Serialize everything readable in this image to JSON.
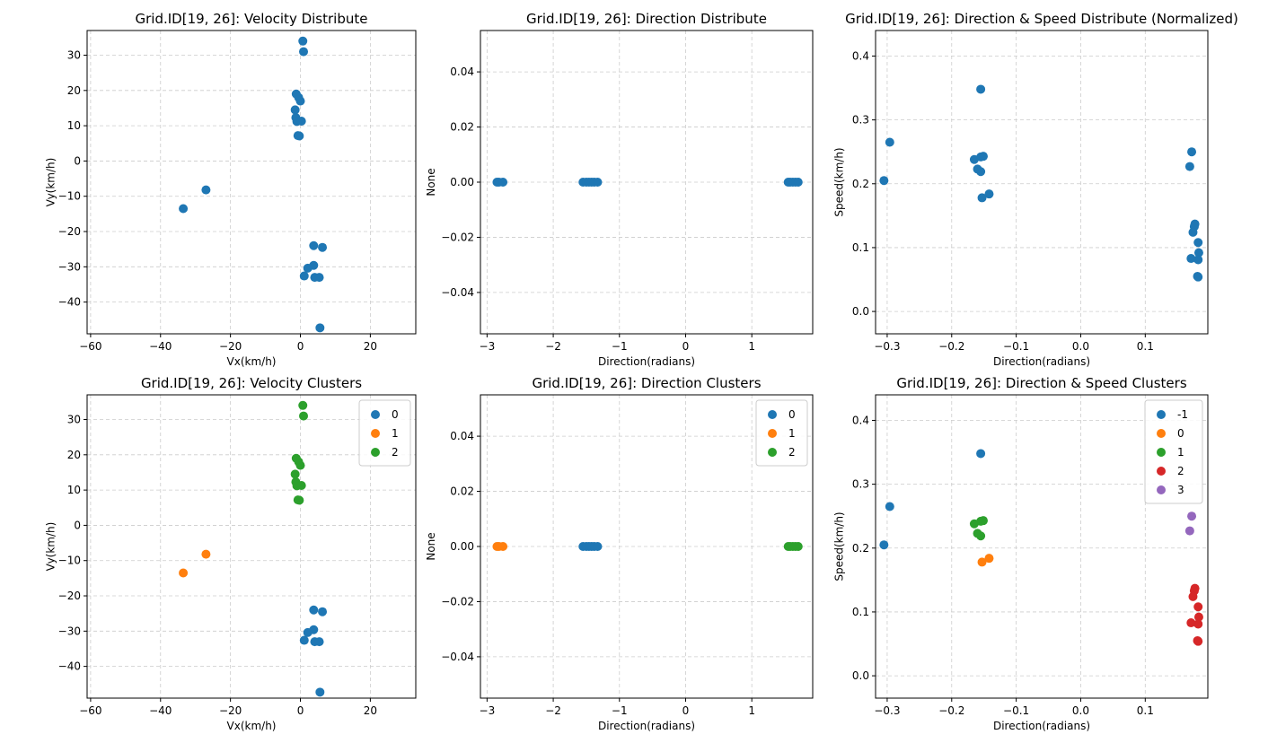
{
  "chart_data": [
    {
      "type": "scatter",
      "title": "Grid.ID[19, 26]: Velocity Distribute",
      "xlabel": "Vx(km/h)",
      "ylabel": "Vy(km/h)",
      "xlim": [
        -61,
        33
      ],
      "ylim": [
        -49,
        37
      ],
      "xticks": [
        -60,
        -40,
        -20,
        0,
        20
      ],
      "yticks": [
        -40,
        -30,
        -20,
        -10,
        0,
        10,
        20,
        30
      ],
      "xtick_labels": [
        "−60",
        "−40",
        "−20",
        "0",
        "20"
      ],
      "ytick_labels": [
        "−40",
        "−30",
        "−20",
        "−10",
        "0",
        "10",
        "20",
        "30"
      ],
      "grid": true,
      "series": [
        {
          "color": "#1f77b4",
          "points": [
            [
              0.7,
              34
            ],
            [
              0.9,
              31
            ],
            [
              -1.2,
              19
            ],
            [
              -0.5,
              18
            ],
            [
              0,
              17
            ],
            [
              -1.5,
              14.5
            ],
            [
              -1.3,
              12.3
            ],
            [
              -1,
              11.2
            ],
            [
              0.3,
              11.3
            ],
            [
              -0.7,
              7.2
            ],
            [
              -0.3,
              7.1
            ],
            [
              -27,
              -8.2
            ],
            [
              -33.5,
              -13.5
            ],
            [
              3.8,
              -24
            ],
            [
              6.3,
              -24.5
            ],
            [
              3.8,
              -29.6
            ],
            [
              2.1,
              -30.4
            ],
            [
              1.1,
              -32.6
            ],
            [
              4.1,
              -33
            ],
            [
              5.4,
              -33
            ],
            [
              5.6,
              -47.3
            ]
          ]
        }
      ]
    },
    {
      "type": "scatter",
      "title": "Grid.ID[19, 26]: Direction Distribute",
      "xlabel": "Direction(radians)",
      "ylabel": "None",
      "xlim": [
        -3.1,
        1.92
      ],
      "ylim": [
        -0.055,
        0.055
      ],
      "xticks": [
        -3,
        -2,
        -1,
        0,
        1
      ],
      "yticks": [
        -0.04,
        -0.02,
        0.0,
        0.02,
        0.04
      ],
      "xtick_labels": [
        "−3",
        "−2",
        "−1",
        "0",
        "1"
      ],
      "ytick_labels": [
        "−0.04",
        "−0.02",
        "0.00",
        "0.02",
        "0.04"
      ],
      "grid": true,
      "series": [
        {
          "color": "#1f77b4",
          "points": [
            [
              -2.85,
              0
            ],
            [
              -2.82,
              0
            ],
            [
              -2.76,
              0
            ],
            [
              -1.55,
              0
            ],
            [
              -1.5,
              0
            ],
            [
              -1.46,
              0
            ],
            [
              -1.42,
              0
            ],
            [
              -1.38,
              0
            ],
            [
              -1.33,
              0
            ],
            [
              1.55,
              0
            ],
            [
              1.58,
              0
            ],
            [
              1.62,
              0
            ],
            [
              1.66,
              0
            ],
            [
              1.7,
              0
            ]
          ]
        }
      ]
    },
    {
      "type": "scatter",
      "title": "Grid.ID[19, 26]: Direction & Speed Distribute (Normalized)",
      "xlabel": "Direction(radians)",
      "ylabel": "Speed(km/h)",
      "xlim": [
        -0.318,
        0.197
      ],
      "ylim": [
        -0.035,
        0.44
      ],
      "xticks": [
        -0.3,
        -0.2,
        -0.1,
        0.0,
        0.1
      ],
      "yticks": [
        0.0,
        0.1,
        0.2,
        0.3,
        0.4
      ],
      "xtick_labels": [
        "−0.3",
        "−0.2",
        "−0.1",
        "0.0",
        "0.1"
      ],
      "ytick_labels": [
        "0.0",
        "0.1",
        "0.2",
        "0.3",
        "0.4"
      ],
      "grid": true,
      "series": [
        {
          "color": "#1f77b4",
          "points": [
            [
              -0.305,
              0.205
            ],
            [
              -0.296,
              0.265
            ],
            [
              -0.155,
              0.348
            ],
            [
              -0.165,
              0.238
            ],
            [
              -0.155,
              0.242
            ],
            [
              -0.151,
              0.243
            ],
            [
              -0.16,
              0.223
            ],
            [
              -0.155,
              0.219
            ],
            [
              -0.153,
              0.178
            ],
            [
              -0.142,
              0.184
            ],
            [
              0.172,
              0.25
            ],
            [
              0.169,
              0.227
            ],
            [
              0.177,
              0.137
            ],
            [
              0.176,
              0.133
            ],
            [
              0.174,
              0.124
            ],
            [
              0.182,
              0.108
            ],
            [
              0.183,
              0.092
            ],
            [
              0.182,
              0.081
            ],
            [
              0.171,
              0.083
            ],
            [
              0.181,
              0.055
            ],
            [
              0.182,
              0.054
            ]
          ]
        }
      ]
    },
    {
      "type": "scatter",
      "title": "Grid.ID[19, 26]: Velocity Clusters",
      "xlabel": "Vx(km/h)",
      "ylabel": "Vy(km/h)",
      "xlim": [
        -61,
        33
      ],
      "ylim": [
        -49,
        37
      ],
      "xticks": [
        -60,
        -40,
        -20,
        0,
        20
      ],
      "yticks": [
        -40,
        -30,
        -20,
        -10,
        0,
        10,
        20,
        30
      ],
      "xtick_labels": [
        "−60",
        "−40",
        "−20",
        "0",
        "20"
      ],
      "ytick_labels": [
        "−40",
        "−30",
        "−20",
        "−10",
        "0",
        "10",
        "20",
        "30"
      ],
      "grid": true,
      "legend": "top-right",
      "series": [
        {
          "name": "0",
          "color": "#1f77b4",
          "points": [
            [
              3.8,
              -24
            ],
            [
              6.3,
              -24.5
            ],
            [
              3.8,
              -29.6
            ],
            [
              2.1,
              -30.4
            ],
            [
              1.1,
              -32.6
            ],
            [
              4.1,
              -33
            ],
            [
              5.4,
              -33
            ],
            [
              5.6,
              -47.3
            ]
          ]
        },
        {
          "name": "1",
          "color": "#ff7f0e",
          "points": [
            [
              -27,
              -8.2
            ],
            [
              -33.5,
              -13.5
            ]
          ]
        },
        {
          "name": "2",
          "color": "#2ca02c",
          "points": [
            [
              0.7,
              34
            ],
            [
              0.9,
              31
            ],
            [
              -1.2,
              19
            ],
            [
              -0.5,
              18
            ],
            [
              0,
              17
            ],
            [
              -1.5,
              14.5
            ],
            [
              -1.3,
              12.3
            ],
            [
              -1,
              11.2
            ],
            [
              0.3,
              11.3
            ],
            [
              -0.7,
              7.2
            ],
            [
              -0.3,
              7.1
            ]
          ]
        }
      ]
    },
    {
      "type": "scatter",
      "title": "Grid.ID[19, 26]: Direction Clusters",
      "xlabel": "Direction(radians)",
      "ylabel": "None",
      "xlim": [
        -3.1,
        1.92
      ],
      "ylim": [
        -0.055,
        0.055
      ],
      "xticks": [
        -3,
        -2,
        -1,
        0,
        1
      ],
      "yticks": [
        -0.04,
        -0.02,
        0.0,
        0.02,
        0.04
      ],
      "xtick_labels": [
        "−3",
        "−2",
        "−1",
        "0",
        "1"
      ],
      "ytick_labels": [
        "−0.04",
        "−0.02",
        "0.00",
        "0.02",
        "0.04"
      ],
      "grid": true,
      "legend": "top-right",
      "series": [
        {
          "name": "0",
          "color": "#1f77b4",
          "points": [
            [
              -1.55,
              0
            ],
            [
              -1.5,
              0
            ],
            [
              -1.46,
              0
            ],
            [
              -1.42,
              0
            ],
            [
              -1.38,
              0
            ],
            [
              -1.33,
              0
            ]
          ]
        },
        {
          "name": "1",
          "color": "#ff7f0e",
          "points": [
            [
              -2.85,
              0
            ],
            [
              -2.82,
              0
            ],
            [
              -2.76,
              0
            ]
          ]
        },
        {
          "name": "2",
          "color": "#2ca02c",
          "points": [
            [
              1.55,
              0
            ],
            [
              1.58,
              0
            ],
            [
              1.62,
              0
            ],
            [
              1.66,
              0
            ],
            [
              1.7,
              0
            ]
          ]
        }
      ]
    },
    {
      "type": "scatter",
      "title": "Grid.ID[19, 26]: Direction & Speed Clusters",
      "xlabel": "Direction(radians)",
      "ylabel": "Speed(km/h)",
      "xlim": [
        -0.318,
        0.197
      ],
      "ylim": [
        -0.035,
        0.44
      ],
      "xticks": [
        -0.3,
        -0.2,
        -0.1,
        0.0,
        0.1
      ],
      "yticks": [
        0.0,
        0.1,
        0.2,
        0.3,
        0.4
      ],
      "xtick_labels": [
        "−0.3",
        "−0.2",
        "−0.1",
        "0.0",
        "0.1"
      ],
      "ytick_labels": [
        "0.0",
        "0.1",
        "0.2",
        "0.3",
        "0.4"
      ],
      "grid": true,
      "legend": "top-right",
      "series": [
        {
          "name": "-1",
          "color": "#1f77b4",
          "points": [
            [
              -0.305,
              0.205
            ],
            [
              -0.296,
              0.265
            ],
            [
              -0.155,
              0.348
            ]
          ]
        },
        {
          "name": "0",
          "color": "#ff7f0e",
          "points": [
            [
              -0.153,
              0.178
            ],
            [
              -0.142,
              0.184
            ]
          ]
        },
        {
          "name": "1",
          "color": "#2ca02c",
          "points": [
            [
              -0.165,
              0.238
            ],
            [
              -0.155,
              0.242
            ],
            [
              -0.151,
              0.243
            ],
            [
              -0.16,
              0.223
            ],
            [
              -0.155,
              0.219
            ]
          ]
        },
        {
          "name": "2",
          "color": "#d62728",
          "points": [
            [
              0.177,
              0.137
            ],
            [
              0.176,
              0.133
            ],
            [
              0.174,
              0.124
            ],
            [
              0.182,
              0.108
            ],
            [
              0.183,
              0.092
            ],
            [
              0.182,
              0.081
            ],
            [
              0.171,
              0.083
            ],
            [
              0.181,
              0.055
            ],
            [
              0.182,
              0.054
            ]
          ]
        },
        {
          "name": "3",
          "color": "#9467bd",
          "points": [
            [
              0.172,
              0.25
            ],
            [
              0.169,
              0.227
            ]
          ]
        }
      ]
    }
  ]
}
